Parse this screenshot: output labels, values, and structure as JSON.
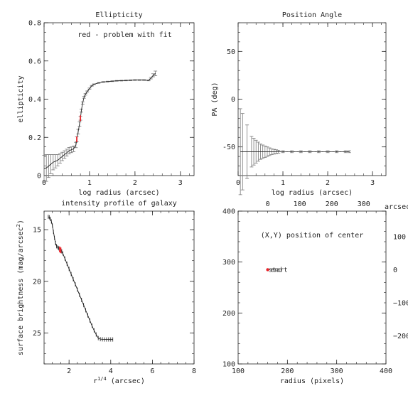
{
  "chart_data": [
    {
      "type": "line",
      "title": "Ellipticity",
      "xlabel": "log radius (arcsec)",
      "ylabel": "ellipticity",
      "annotation": "red - problem with fit",
      "xlim": [
        0,
        3.3
      ],
      "ylim": [
        0,
        0.8
      ],
      "xticks": [
        0,
        1,
        2,
        3
      ],
      "yticks": [
        0,
        0.2,
        0.4,
        0.6,
        0.8
      ],
      "xticklabels": [
        "0",
        "1",
        "2",
        "3"
      ],
      "yticklabels": [
        "0",
        "0.2",
        "0.4",
        "0.6",
        "0.8"
      ],
      "colors": {
        "line": "#222222",
        "error": "#777777",
        "problem": "#e8232a"
      },
      "x": [
        0.0,
        0.05,
        0.1,
        0.15,
        0.2,
        0.25,
        0.3,
        0.35,
        0.4,
        0.45,
        0.5,
        0.55,
        0.6,
        0.65,
        0.7,
        0.72,
        0.75,
        0.78,
        0.8,
        0.82,
        0.85,
        0.88,
        0.91,
        0.95,
        1.0,
        1.05,
        1.1,
        1.2,
        1.3,
        1.4,
        1.5,
        1.6,
        1.7,
        1.8,
        1.9,
        2.0,
        2.1,
        2.2,
        2.3,
        2.35,
        2.4,
        2.45
      ],
      "y": [
        0.036,
        0.04,
        0.05,
        0.06,
        0.07,
        0.075,
        0.08,
        0.09,
        0.1,
        0.11,
        0.12,
        0.13,
        0.135,
        0.14,
        0.16,
        0.19,
        0.23,
        0.27,
        0.3,
        0.34,
        0.38,
        0.41,
        0.425,
        0.44,
        0.455,
        0.47,
        0.478,
        0.485,
        0.49,
        0.492,
        0.494,
        0.496,
        0.497,
        0.498,
        0.499,
        0.5,
        0.5,
        0.5,
        0.498,
        0.51,
        0.525,
        0.535
      ],
      "yerr": [
        0.07,
        0.07,
        0.06,
        0.05,
        0.04,
        0.035,
        0.03,
        0.025,
        0.022,
        0.02,
        0.018,
        0.017,
        0.015,
        0.015,
        0.014,
        0.013,
        0.012,
        0.011,
        0.01,
        0.008,
        0.006,
        0.005,
        0.004,
        0.003,
        0.003,
        0.002,
        0.002,
        0.002,
        0.002,
        0.002,
        0.002,
        0.002,
        0.002,
        0.002,
        0.002,
        0.002,
        0.002,
        0.002,
        0.002,
        0.004,
        0.008,
        0.012
      ],
      "problem_x": [
        0.72,
        0.8
      ],
      "problem_y": [
        0.19,
        0.3
      ]
    },
    {
      "type": "line",
      "title": "Position Angle",
      "xlabel": "log radius (arcsec)",
      "ylabel": "PA (deg)",
      "xlim": [
        0,
        3.3
      ],
      "ylim": [
        -80,
        80
      ],
      "xticks": [
        0,
        1,
        2,
        3
      ],
      "yticks": [
        -50,
        0,
        50
      ],
      "xticklabels": [
        "0",
        "1",
        "2",
        "3"
      ],
      "yticklabels": [
        "-50",
        "0",
        "50"
      ],
      "colors": {
        "line": "#222222",
        "error": "#777777"
      },
      "x": [
        0.05,
        0.1,
        0.2,
        0.3,
        0.35,
        0.4,
        0.45,
        0.5,
        0.55,
        0.6,
        0.65,
        0.7,
        0.75,
        0.8,
        0.85,
        0.9,
        1.0,
        1.2,
        1.4,
        1.6,
        1.8,
        2.0,
        2.2,
        2.4,
        2.48
      ],
      "y": [
        -55,
        -55,
        -55,
        -55,
        -55,
        -55,
        -55,
        -55,
        -55,
        -55,
        -55,
        -55,
        -55,
        -55,
        -55,
        -55,
        -55,
        -55,
        -55,
        -55,
        -55,
        -55,
        -55,
        -55,
        -55
      ],
      "yerr": [
        45,
        40,
        28,
        16,
        14,
        12,
        10,
        8,
        7,
        6,
        5,
        4,
        3,
        2.5,
        2,
        1.5,
        1,
        1,
        1,
        1,
        1,
        1,
        1,
        1,
        1
      ]
    },
    {
      "type": "line",
      "title": "intensity profile of galaxy",
      "xlabel": "r^{1/4} (arcsec)",
      "xlabel_parts": {
        "pre": "r",
        "sup": "1/4",
        "post": " (arcsec)"
      },
      "ylabel": "surface brightness (mag/arcsec^2)",
      "ylabel_parts": {
        "pre": "surface brightness (mag/arcsec",
        "sup": "2",
        "post": ")"
      },
      "xlim": [
        0.8,
        8
      ],
      "ylim": [
        28,
        13.2
      ],
      "xticks": [
        2,
        4,
        6,
        8
      ],
      "yticks": [
        15,
        20,
        25
      ],
      "xticklabels": [
        "2",
        "4",
        "6",
        "8"
      ],
      "yticklabels": [
        "15",
        "20",
        "25"
      ],
      "colors": {
        "line": "#222222",
        "error": "#777777",
        "problem": "#e8232a"
      },
      "x": [
        1.0,
        1.05,
        1.1,
        1.15,
        1.2,
        1.25,
        1.3,
        1.35,
        1.4,
        1.45,
        1.5,
        1.55,
        1.6,
        1.65,
        1.7,
        1.8,
        1.9,
        2.0,
        2.1,
        2.2,
        2.3,
        2.4,
        2.5,
        2.6,
        2.7,
        2.8,
        2.9,
        3.0,
        3.1,
        3.2,
        3.3,
        3.4,
        3.5,
        3.6,
        3.7,
        3.8,
        3.9,
        4.0,
        4.1
      ],
      "y": [
        13.75,
        13.8,
        13.95,
        14.2,
        14.6,
        15.2,
        15.8,
        16.3,
        16.6,
        16.7,
        16.8,
        16.9,
        17.0,
        17.1,
        17.3,
        17.8,
        18.3,
        18.8,
        19.3,
        19.8,
        20.3,
        20.8,
        21.3,
        21.8,
        22.3,
        22.8,
        23.3,
        23.8,
        24.3,
        24.75,
        25.15,
        25.5,
        25.6,
        25.62,
        25.63,
        25.63,
        25.63,
        25.63,
        25.63
      ],
      "problem_x": [
        1.55,
        1.6
      ],
      "problem_y": [
        16.9,
        17.0
      ]
    },
    {
      "type": "scatter",
      "title": "",
      "annotation": "(X,Y) position of center",
      "xlabel": "radius (pixels)",
      "top_axis_label": "arcsec",
      "xlim": [
        100,
        400
      ],
      "ylim": [
        100,
        400
      ],
      "xticks": [
        100,
        200,
        300,
        400
      ],
      "yticks": [
        100,
        200,
        300,
        400
      ],
      "xticklabels": [
        "100",
        "200",
        "300",
        "400"
      ],
      "yticklabels": [
        "100",
        "200",
        "300",
        "400"
      ],
      "top_ticks": [
        {
          "pix": 160,
          "label": "0"
        },
        {
          "pix": 225,
          "label": "100"
        },
        {
          "pix": 290,
          "label": "200"
        },
        {
          "pix": 355,
          "label": "300"
        }
      ],
      "right_ticks": [
        {
          "pix": 350,
          "label": "100"
        },
        {
          "pix": 285,
          "label": "0"
        },
        {
          "pix": 220,
          "label": "−100"
        },
        {
          "pix": 155,
          "label": "−200"
        }
      ],
      "point_labels": [
        "start",
        "end"
      ],
      "points": [
        {
          "x": 160,
          "y": 285
        }
      ],
      "colors": {
        "point": "#e8232a"
      }
    }
  ]
}
